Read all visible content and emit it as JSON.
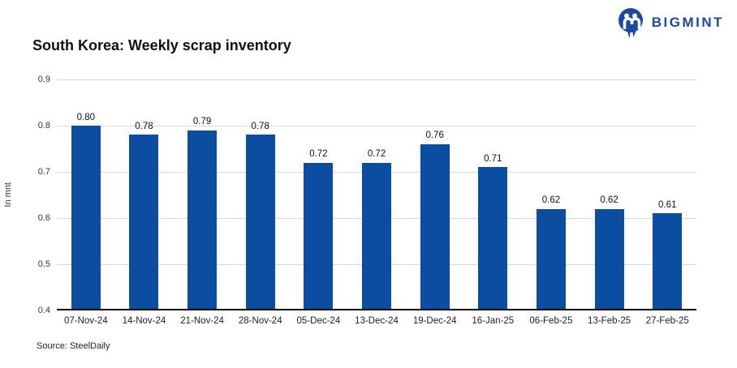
{
  "logo": {
    "text": "BIGMINT",
    "color": "#1b4a9e"
  },
  "chart_data": {
    "type": "bar",
    "title": "South Korea: Weekly scrap inventory",
    "ylabel": "In mnt",
    "xlabel": "",
    "source": "Source: SteelDaily",
    "categories": [
      "07-Nov-24",
      "14-Nov-24",
      "21-Nov-24",
      "28-Nov-24",
      "05-Dec-24",
      "13-Dec-24",
      "19-Dec-24",
      "16-Jan-25",
      "06-Feb-25",
      "13-Feb-25",
      "27-Feb-25"
    ],
    "values": [
      0.8,
      0.78,
      0.79,
      0.78,
      0.72,
      0.72,
      0.76,
      0.71,
      0.62,
      0.62,
      0.61
    ],
    "ylim": [
      0.4,
      0.9
    ],
    "yticks": [
      0.9,
      0.8,
      0.7,
      0.6,
      0.5,
      0.4
    ],
    "bar_color": "#0b4da0",
    "gridline_color": "#d9d9d9",
    "grid": true,
    "legend": "none",
    "data_labels": true
  }
}
